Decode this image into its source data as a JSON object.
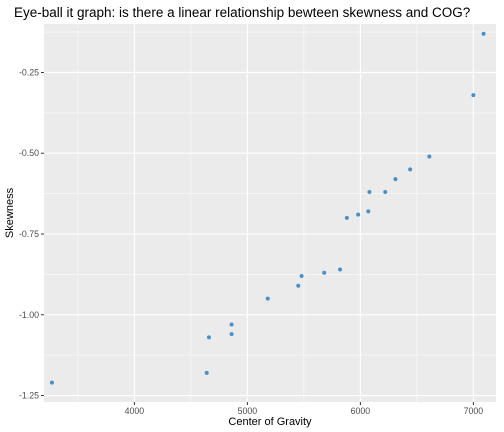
{
  "chart_data": {
    "type": "scatter",
    "title": "Eye-ball it graph: is there a linear relationship bewteen skewness and COG?",
    "xlabel": "Center of Gravity",
    "ylabel": "Skewness",
    "xlim": [
      3200,
      7200
    ],
    "ylim": [
      -1.27,
      -0.1
    ],
    "x_ticks": [
      4000,
      5000,
      6000,
      7000
    ],
    "x_tick_labels": [
      "4000",
      "5000",
      "6000",
      "7000"
    ],
    "y_ticks": [
      -1.25,
      -1.0,
      -0.75,
      -0.5,
      -0.25
    ],
    "y_tick_labels": [
      "-1.25",
      "-1.00",
      "-0.75",
      "-0.50",
      "-0.25"
    ],
    "grid": true,
    "point_color": "#4a90c8",
    "panel_color": "#ebebeb",
    "grid_color": "#ffffff",
    "points": [
      {
        "x": 3270,
        "y": -1.21
      },
      {
        "x": 4640,
        "y": -1.18
      },
      {
        "x": 4660,
        "y": -1.07
      },
      {
        "x": 4860,
        "y": -1.06
      },
      {
        "x": 4860,
        "y": -1.03
      },
      {
        "x": 5180,
        "y": -0.95
      },
      {
        "x": 5450,
        "y": -0.91
      },
      {
        "x": 5480,
        "y": -0.88
      },
      {
        "x": 5680,
        "y": -0.87
      },
      {
        "x": 5820,
        "y": -0.86
      },
      {
        "x": 5880,
        "y": -0.7
      },
      {
        "x": 5980,
        "y": -0.69
      },
      {
        "x": 6070,
        "y": -0.68
      },
      {
        "x": 6080,
        "y": -0.62
      },
      {
        "x": 6220,
        "y": -0.62
      },
      {
        "x": 6310,
        "y": -0.58
      },
      {
        "x": 6440,
        "y": -0.55
      },
      {
        "x": 6610,
        "y": -0.51
      },
      {
        "x": 7000,
        "y": -0.32
      },
      {
        "x": 7090,
        "y": -0.13
      }
    ]
  }
}
